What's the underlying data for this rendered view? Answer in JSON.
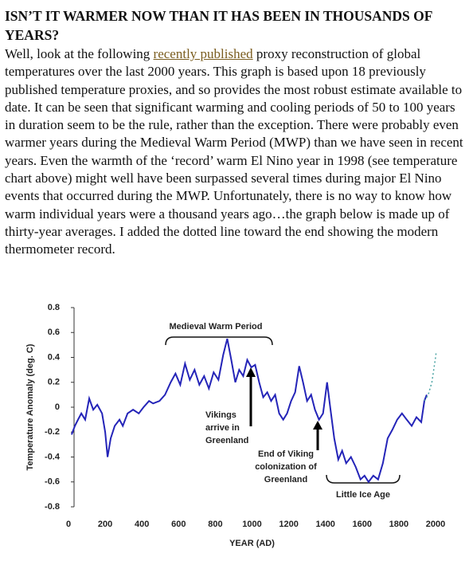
{
  "header": {
    "title": "ISN’T IT WARMER NOW THAN IT HAS BEEN IN THOUSANDS OF YEARS?"
  },
  "paragraph": {
    "before_link": "Well, look at the following ",
    "link": "recently published",
    "after_link": " proxy reconstruction of global temperatures over the last 2000 years. This graph is based upon 18 previously published temperature proxies, and so provides the most robust estimate available to date. It can be seen that significant warming and cooling periods of 50 to 100 years in duration seem to be the rule, rather than the exception. There were probably even warmer years during the Medieval Warm Period (MWP) than we have seen in recent years. Even the warmth of the ‘record’ warm El Nino year in 1998 (see temperature chart above) might well have been surpassed several times during major El Nino events that occurred during the MWP. Unfortunately, there is no way to know how warm individual years were a thousand years ago…the graph below is made up of thirty-year averages. I added the dotted line toward the end showing the modern thermometer record."
  },
  "chart_data": {
    "type": "line",
    "x_label": "YEAR (AD)",
    "y_label": "Temperature Anomaly (deg. C)",
    "xlim": [
      0,
      2000
    ],
    "xticks": [
      0,
      200,
      400,
      600,
      800,
      1000,
      1200,
      1400,
      1600,
      1800,
      2000
    ],
    "ylim": [
      -0.8,
      0.8
    ],
    "yticks": [
      0.8,
      0.6,
      0.4,
      0.2,
      0,
      -0.2,
      -0.4,
      -0.6,
      -0.8
    ],
    "series": [
      {
        "color": "#2424b8",
        "style": "solid",
        "x": [
          17,
          35,
          52,
          70,
          91,
          113,
          135,
          157,
          183,
          200,
          213,
          230,
          252,
          278,
          296,
          322,
          352,
          383,
          409,
          439,
          461,
          496,
          526,
          557,
          583,
          609,
          635,
          661,
          687,
          713,
          739,
          765,
          791,
          817,
          843,
          865,
          887,
          909,
          930,
          952,
          974,
          996,
          1017,
          1039,
          1061,
          1083,
          1104,
          1126,
          1148,
          1170,
          1191,
          1213,
          1235,
          1257,
          1278,
          1300,
          1322,
          1343,
          1365,
          1387,
          1409,
          1426,
          1448,
          1470,
          1491,
          1513,
          1539,
          1565,
          1591,
          1613,
          1635,
          1661,
          1687,
          1713,
          1739,
          1765,
          1791,
          1817,
          1843,
          1870,
          1896,
          1922,
          1939,
          1952
        ],
        "values": [
          -0.22,
          -0.15,
          -0.1,
          -0.05,
          -0.1,
          0.07,
          -0.02,
          0.02,
          -0.05,
          -0.2,
          -0.4,
          -0.25,
          -0.15,
          -0.1,
          -0.15,
          -0.05,
          -0.02,
          -0.05,
          0.0,
          0.05,
          0.03,
          0.05,
          0.1,
          0.2,
          0.27,
          0.18,
          0.35,
          0.22,
          0.3,
          0.18,
          0.25,
          0.15,
          0.28,
          0.22,
          0.42,
          0.55,
          0.38,
          0.2,
          0.3,
          0.25,
          0.38,
          0.32,
          0.34,
          0.2,
          0.08,
          0.12,
          0.05,
          0.1,
          -0.05,
          -0.1,
          -0.05,
          0.05,
          0.12,
          0.33,
          0.2,
          0.05,
          0.1,
          -0.02,
          -0.1,
          -0.05,
          0.2,
          0.0,
          -0.25,
          -0.42,
          -0.35,
          -0.45,
          -0.4,
          -0.48,
          -0.58,
          -0.55,
          -0.6,
          -0.55,
          -0.58,
          -0.45,
          -0.25,
          -0.18,
          -0.1,
          -0.05,
          -0.1,
          -0.15,
          -0.08,
          -0.12,
          0.05,
          0.1
        ]
      },
      {
        "color": "#4aa3a3",
        "style": "dotted",
        "x": [
          1940,
          1960,
          1980,
          2000,
          2004
        ],
        "values": [
          0.05,
          0.1,
          0.2,
          0.4,
          0.45
        ]
      }
    ],
    "annotations": [
      {
        "lines": [
          "Medieval Warm Period"
        ]
      },
      {
        "lines": [
          "Vikings",
          "arrive in",
          "Greenland"
        ]
      },
      {
        "lines": [
          "End of Viking",
          "colonization of",
          "Greenland"
        ]
      },
      {
        "lines": [
          "Little Ice Age"
        ]
      }
    ]
  }
}
